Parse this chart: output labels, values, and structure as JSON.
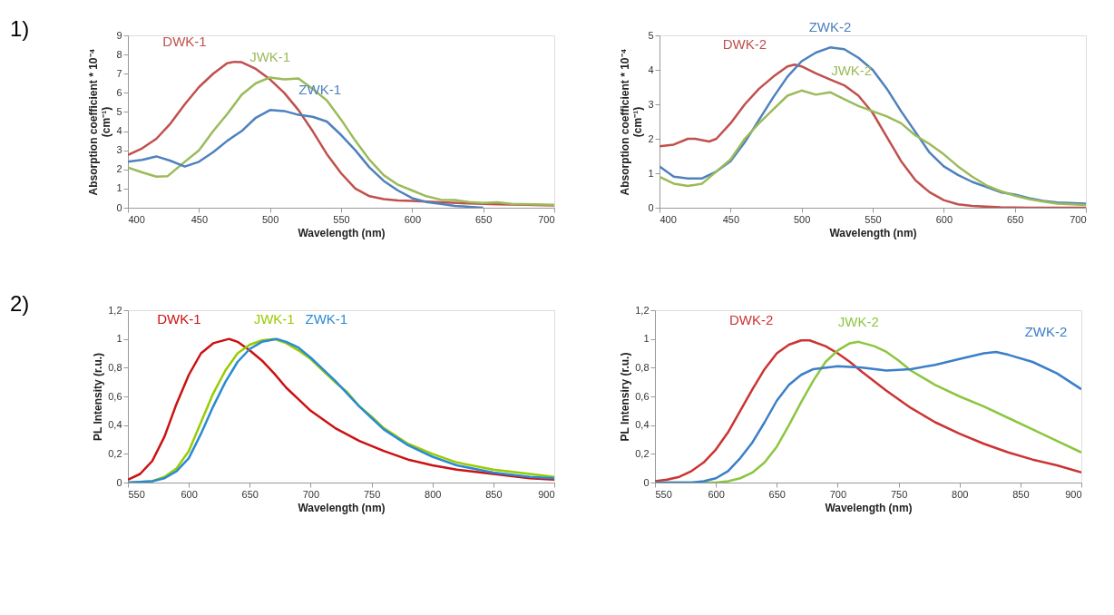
{
  "chart_data": [
    {
      "type": "line",
      "xlabel": "Wavelength (nm)",
      "ylabel": "Absorption coefficient * 10⁻⁴\n(cm⁻¹)",
      "annotations": [
        "1)"
      ],
      "xlim": [
        400,
        700
      ],
      "xticks": [
        400,
        450,
        500,
        550,
        600,
        650,
        700
      ],
      "ylim": [
        0,
        9
      ],
      "yticks": [
        0,
        1,
        2,
        3,
        4,
        5,
        6,
        7,
        8,
        9
      ],
      "grid": false,
      "legend": false,
      "marker": "none",
      "line_style": "solid",
      "series": [
        {
          "name": "DWK-1",
          "color": "#c0504d",
          "x": [
            400,
            410,
            420,
            430,
            440,
            450,
            460,
            470,
            475,
            480,
            490,
            500,
            510,
            520,
            530,
            540,
            550,
            560,
            570,
            580,
            590,
            600,
            620,
            640,
            660,
            680,
            700
          ],
          "values": [
            2.75,
            3.1,
            3.6,
            4.4,
            5.4,
            6.3,
            7.0,
            7.55,
            7.62,
            7.6,
            7.25,
            6.7,
            6.0,
            5.1,
            4.0,
            2.8,
            1.8,
            1.0,
            0.6,
            0.45,
            0.38,
            0.35,
            0.28,
            0.22,
            0.18,
            0.15,
            0.12
          ]
        },
        {
          "name": "JWK-1",
          "color": "#9bbb59",
          "x": [
            400,
            410,
            420,
            428,
            440,
            450,
            460,
            470,
            480,
            490,
            500,
            510,
            520,
            530,
            540,
            550,
            560,
            570,
            580,
            590,
            600,
            610,
            620,
            630,
            640,
            650,
            660,
            670,
            700
          ],
          "values": [
            2.1,
            1.85,
            1.62,
            1.65,
            2.4,
            3.0,
            4.0,
            4.9,
            5.9,
            6.5,
            6.8,
            6.7,
            6.75,
            6.2,
            5.6,
            4.6,
            3.5,
            2.5,
            1.7,
            1.2,
            0.9,
            0.6,
            0.42,
            0.4,
            0.3,
            0.25,
            0.28,
            0.2,
            0.15
          ]
        },
        {
          "name": "ZWK-1",
          "color": "#4f81bd",
          "x": [
            400,
            410,
            420,
            430,
            440,
            450,
            460,
            470,
            480,
            490,
            500,
            510,
            520,
            530,
            540,
            550,
            560,
            570,
            580,
            590,
            600,
            610,
            620,
            630,
            640,
            650
          ],
          "values": [
            2.4,
            2.5,
            2.68,
            2.45,
            2.15,
            2.4,
            2.9,
            3.5,
            4.0,
            4.7,
            5.1,
            5.05,
            4.85,
            4.75,
            4.5,
            3.8,
            3.0,
            2.1,
            1.4,
            0.9,
            0.5,
            0.3,
            0.2,
            0.1,
            0.05,
            0.0
          ]
        }
      ]
    },
    {
      "type": "line",
      "xlabel": "Wavelength (nm)",
      "ylabel": "Absorption coefficient * 10⁻⁴\n(cm⁻¹)",
      "xlim": [
        400,
        700
      ],
      "xticks": [
        400,
        450,
        500,
        550,
        600,
        650,
        700
      ],
      "ylim": [
        0,
        5
      ],
      "yticks": [
        0,
        1,
        2,
        3,
        4,
        5
      ],
      "grid": false,
      "legend": false,
      "marker": "none",
      "line_style": "solid",
      "series": [
        {
          "name": "DWK-2",
          "color": "#c0504d",
          "x": [
            400,
            410,
            420,
            425,
            435,
            440,
            450,
            460,
            470,
            480,
            490,
            495,
            500,
            510,
            520,
            530,
            540,
            550,
            560,
            570,
            580,
            590,
            600,
            610,
            620,
            640,
            660,
            700
          ],
          "values": [
            1.78,
            1.83,
            2.0,
            2.0,
            1.92,
            2.0,
            2.45,
            3.0,
            3.45,
            3.8,
            4.1,
            4.15,
            4.1,
            3.9,
            3.72,
            3.55,
            3.25,
            2.75,
            2.05,
            1.35,
            0.8,
            0.45,
            0.22,
            0.1,
            0.05,
            0.01,
            0.0,
            0.0
          ]
        },
        {
          "name": "ZWK-2",
          "color": "#4f81bd",
          "x": [
            400,
            410,
            420,
            430,
            440,
            450,
            460,
            470,
            480,
            490,
            500,
            510,
            520,
            530,
            540,
            550,
            560,
            570,
            580,
            590,
            600,
            610,
            620,
            630,
            640,
            650,
            660,
            670,
            680,
            700
          ],
          "values": [
            1.2,
            0.9,
            0.85,
            0.85,
            1.05,
            1.35,
            1.9,
            2.55,
            3.2,
            3.8,
            4.25,
            4.5,
            4.65,
            4.6,
            4.35,
            4.0,
            3.45,
            2.8,
            2.2,
            1.6,
            1.2,
            0.95,
            0.75,
            0.6,
            0.45,
            0.38,
            0.28,
            0.2,
            0.15,
            0.12
          ]
        },
        {
          "name": "JWK-2",
          "color": "#9bbb59",
          "x": [
            400,
            410,
            420,
            430,
            440,
            450,
            460,
            470,
            480,
            490,
            500,
            510,
            520,
            530,
            540,
            550,
            560,
            570,
            580,
            590,
            600,
            610,
            620,
            630,
            640,
            650,
            660,
            670,
            680,
            700
          ],
          "values": [
            0.9,
            0.7,
            0.63,
            0.7,
            1.05,
            1.4,
            2.0,
            2.45,
            2.85,
            3.25,
            3.4,
            3.28,
            3.35,
            3.15,
            2.95,
            2.8,
            2.65,
            2.45,
            2.1,
            1.85,
            1.55,
            1.2,
            0.9,
            0.65,
            0.48,
            0.35,
            0.25,
            0.18,
            0.12,
            0.08
          ]
        }
      ]
    },
    {
      "type": "line",
      "xlabel": "Wavelength  (nm)",
      "ylabel": "PL Intensity (r.u.)",
      "annotations": [
        "2)"
      ],
      "xlim": [
        550,
        900
      ],
      "xticks": [
        550,
        600,
        650,
        700,
        750,
        800,
        850,
        900
      ],
      "ylim": [
        0,
        1.2
      ],
      "yticks": [
        0,
        {
          "value": 0.2,
          "label": "0,2"
        },
        {
          "value": 0.4,
          "label": "0,4"
        },
        {
          "value": 0.6,
          "label": "0,6"
        },
        {
          "value": 0.8,
          "label": "0,8"
        },
        1,
        {
          "value": 1.2,
          "label": "1,2"
        }
      ],
      "grid": false,
      "legend": false,
      "marker": "none",
      "line_style": "solid",
      "series": [
        {
          "name": "DWK-1",
          "color": "#cc1111",
          "x": [
            550,
            560,
            570,
            580,
            590,
            600,
            610,
            620,
            633,
            640,
            650,
            660,
            670,
            680,
            690,
            700,
            720,
            740,
            760,
            780,
            800,
            820,
            850,
            880,
            900
          ],
          "values": [
            0.02,
            0.06,
            0.15,
            0.32,
            0.55,
            0.75,
            0.9,
            0.97,
            1.0,
            0.98,
            0.92,
            0.85,
            0.76,
            0.66,
            0.58,
            0.5,
            0.38,
            0.29,
            0.22,
            0.16,
            0.12,
            0.09,
            0.06,
            0.03,
            0.02
          ]
        },
        {
          "name": "JWK-1",
          "color": "#99cc00",
          "x": [
            550,
            570,
            580,
            590,
            600,
            610,
            620,
            630,
            640,
            650,
            660,
            670,
            680,
            690,
            700,
            710,
            720,
            730,
            740,
            750,
            760,
            780,
            800,
            820,
            850,
            880,
            900
          ],
          "values": [
            0.0,
            0.01,
            0.04,
            0.1,
            0.22,
            0.42,
            0.62,
            0.78,
            0.9,
            0.96,
            0.99,
            1.0,
            0.97,
            0.92,
            0.86,
            0.78,
            0.7,
            0.63,
            0.53,
            0.46,
            0.38,
            0.27,
            0.2,
            0.14,
            0.09,
            0.06,
            0.04
          ]
        },
        {
          "name": "ZWK-1",
          "color": "#2a8ad4",
          "x": [
            550,
            570,
            580,
            590,
            600,
            610,
            620,
            630,
            640,
            650,
            660,
            672,
            680,
            690,
            700,
            710,
            720,
            730,
            740,
            750,
            760,
            780,
            800,
            820,
            850,
            880,
            900
          ],
          "values": [
            0.0,
            0.01,
            0.03,
            0.08,
            0.17,
            0.34,
            0.53,
            0.7,
            0.84,
            0.93,
            0.98,
            1.0,
            0.98,
            0.94,
            0.87,
            0.79,
            0.71,
            0.62,
            0.53,
            0.45,
            0.37,
            0.26,
            0.18,
            0.12,
            0.07,
            0.04,
            0.03
          ]
        }
      ]
    },
    {
      "type": "line",
      "xlabel": "Wavelength  (nm)",
      "ylabel": "PL Intensiry (r.u.)",
      "xlim": [
        550,
        900
      ],
      "xticks": [
        550,
        600,
        650,
        700,
        750,
        800,
        850,
        900
      ],
      "ylim": [
        0,
        1.2
      ],
      "yticks": [
        0,
        {
          "value": 0.2,
          "label": "0,2"
        },
        {
          "value": 0.4,
          "label": "0,4"
        },
        {
          "value": 0.6,
          "label": "0,6"
        },
        {
          "value": 0.8,
          "label": "0,8"
        },
        1,
        {
          "value": 1.2,
          "label": "1,2"
        }
      ],
      "grid": false,
      "legend": false,
      "marker": "none",
      "line_style": "solid",
      "series": [
        {
          "name": "DWK-2",
          "color": "#cc3333",
          "x": [
            550,
            560,
            570,
            580,
            590,
            600,
            610,
            620,
            630,
            640,
            650,
            660,
            670,
            677,
            690,
            700,
            710,
            720,
            740,
            760,
            780,
            800,
            820,
            840,
            860,
            880,
            900
          ],
          "values": [
            0.01,
            0.02,
            0.04,
            0.08,
            0.14,
            0.23,
            0.35,
            0.5,
            0.65,
            0.79,
            0.9,
            0.96,
            0.99,
            0.99,
            0.95,
            0.9,
            0.84,
            0.77,
            0.64,
            0.52,
            0.42,
            0.34,
            0.27,
            0.21,
            0.16,
            0.12,
            0.07
          ]
        },
        {
          "name": "JWK-2",
          "color": "#8cc63f",
          "x": [
            550,
            600,
            610,
            620,
            630,
            640,
            650,
            660,
            670,
            680,
            690,
            700,
            710,
            717,
            730,
            740,
            750,
            760,
            780,
            800,
            820,
            840,
            860,
            880,
            900
          ],
          "values": [
            0.0,
            0.0,
            0.01,
            0.03,
            0.07,
            0.14,
            0.25,
            0.4,
            0.56,
            0.71,
            0.84,
            0.92,
            0.97,
            0.98,
            0.95,
            0.91,
            0.85,
            0.78,
            0.68,
            0.6,
            0.53,
            0.45,
            0.37,
            0.29,
            0.21
          ]
        },
        {
          "name": "ZWK-2",
          "color": "#3a7fc8",
          "x": [
            550,
            580,
            590,
            600,
            610,
            620,
            630,
            640,
            650,
            660,
            670,
            680,
            700,
            720,
            740,
            760,
            780,
            800,
            820,
            830,
            840,
            860,
            880,
            900
          ],
          "values": [
            0.0,
            0.0,
            0.01,
            0.03,
            0.08,
            0.17,
            0.28,
            0.42,
            0.57,
            0.68,
            0.75,
            0.79,
            0.81,
            0.8,
            0.78,
            0.79,
            0.82,
            0.86,
            0.9,
            0.91,
            0.89,
            0.84,
            0.76,
            0.65
          ]
        }
      ]
    }
  ]
}
